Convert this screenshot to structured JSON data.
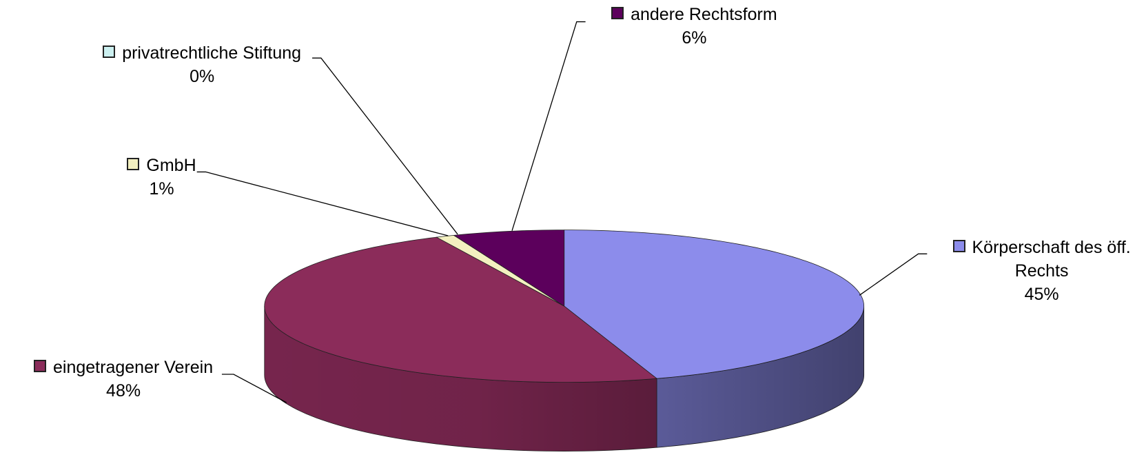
{
  "chart_data": {
    "type": "pie",
    "categories": [
      "Körperschaft des öff. Rechts",
      "eingetragener Verein",
      "GmbH",
      "privatrechtliche Stiftung",
      "andere Rechtsform"
    ],
    "values": [
      45,
      48,
      1,
      0,
      6
    ],
    "value_labels": [
      "45%",
      "48%",
      "1%",
      "0%",
      "6%"
    ],
    "colors": [
      "#8c8ceb",
      "#8b2c5a",
      "#f3f0c0",
      "#ccf0f0",
      "#5c005c"
    ]
  }
}
